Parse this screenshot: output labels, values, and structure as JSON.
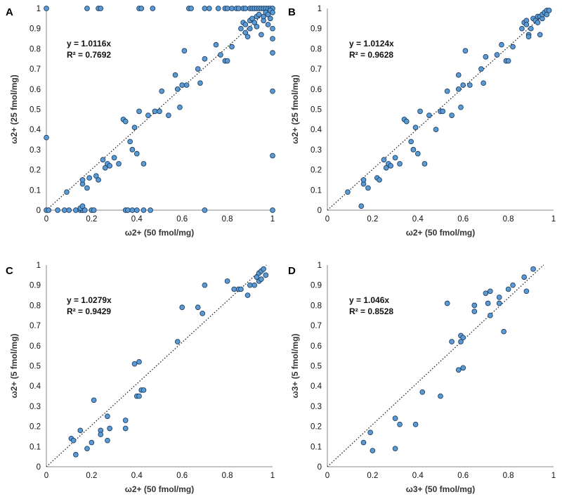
{
  "colors": {
    "point_fill": "#5b9bd5",
    "point_stroke": "#1f3f62",
    "trendline": "#222222",
    "axis": "#888888"
  },
  "chart_data": [
    {
      "panel": "A",
      "type": "scatter",
      "xlabel": "ω2+ (50 fmol/mg)",
      "ylabel": "ω2+ (25 fmol/mg)",
      "xlim": [
        0,
        1
      ],
      "ylim": [
        0,
        1
      ],
      "xticks": [
        "0",
        "0.2",
        "0.4",
        "0.6",
        "0.8",
        "1"
      ],
      "yticks": [
        "0",
        "0.1",
        "0.2",
        "0.3",
        "0.4",
        "0.5",
        "0.6",
        "0.7",
        "0.8",
        "0.9",
        "1"
      ],
      "equation": "y = 1.0116x",
      "r2": "R² = 0.7692",
      "slope": 1.0116,
      "points": [
        [
          0,
          1
        ],
        [
          0.18,
          1
        ],
        [
          0.23,
          1
        ],
        [
          0.24,
          1
        ],
        [
          0.41,
          1
        ],
        [
          0.42,
          1
        ],
        [
          0.47,
          1
        ],
        [
          0.63,
          1
        ],
        [
          0.64,
          1
        ],
        [
          0.7,
          1
        ],
        [
          0.72,
          1
        ],
        [
          0.76,
          1
        ],
        [
          0.79,
          1
        ],
        [
          0.8,
          1
        ],
        [
          0.82,
          1
        ],
        [
          0.84,
          1
        ],
        [
          0.85,
          1
        ],
        [
          0.87,
          1
        ],
        [
          0.88,
          1
        ],
        [
          0.9,
          1
        ],
        [
          0.91,
          1
        ],
        [
          0.92,
          1
        ],
        [
          0.93,
          1
        ],
        [
          0.94,
          1
        ],
        [
          0.95,
          1
        ],
        [
          0.96,
          1
        ],
        [
          0.97,
          1
        ],
        [
          0.98,
          1
        ],
        [
          0.99,
          1
        ],
        [
          1,
          1
        ],
        [
          0,
          0.36
        ],
        [
          0,
          0
        ],
        [
          0.01,
          0
        ],
        [
          0.05,
          0
        ],
        [
          0.08,
          0
        ],
        [
          0.1,
          0
        ],
        [
          0.13,
          0
        ],
        [
          0.15,
          0
        ],
        [
          0.16,
          0
        ],
        [
          0.17,
          0
        ],
        [
          0.2,
          0
        ],
        [
          0.21,
          0
        ],
        [
          0.35,
          0
        ],
        [
          0.36,
          0
        ],
        [
          0.38,
          0
        ],
        [
          0.4,
          0
        ],
        [
          0.43,
          0
        ],
        [
          0.46,
          0
        ],
        [
          0.7,
          0
        ],
        [
          1,
          0
        ],
        [
          0.15,
          0.01
        ],
        [
          0.16,
          0.02
        ],
        [
          1,
          0.27
        ],
        [
          1,
          0.59
        ],
        [
          1,
          0.78
        ],
        [
          1,
          0.85
        ],
        [
          1,
          0.9
        ],
        [
          0.09,
          0.09
        ],
        [
          0.16,
          0.13
        ],
        [
          0.16,
          0.15
        ],
        [
          0.18,
          0.11
        ],
        [
          0.19,
          0.16
        ],
        [
          0.22,
          0.17
        ],
        [
          0.23,
          0.15
        ],
        [
          0.25,
          0.25
        ],
        [
          0.26,
          0.21
        ],
        [
          0.27,
          0.23
        ],
        [
          0.28,
          0.22
        ],
        [
          0.3,
          0.26
        ],
        [
          0.32,
          0.23
        ],
        [
          0.34,
          0.45
        ],
        [
          0.35,
          0.44
        ],
        [
          0.37,
          0.34
        ],
        [
          0.38,
          0.3
        ],
        [
          0.39,
          0.41
        ],
        [
          0.4,
          0.28
        ],
        [
          0.41,
          0.49
        ],
        [
          0.43,
          0.23
        ],
        [
          0.45,
          0.47
        ],
        [
          0.48,
          0.49
        ],
        [
          0.5,
          0.49
        ],
        [
          0.51,
          0.59
        ],
        [
          0.54,
          0.47
        ],
        [
          0.57,
          0.67
        ],
        [
          0.58,
          0.6
        ],
        [
          0.59,
          0.51
        ],
        [
          0.6,
          0.62
        ],
        [
          0.61,
          0.79
        ],
        [
          0.62,
          0.62
        ],
        [
          0.67,
          0.7
        ],
        [
          0.68,
          0.63
        ],
        [
          0.7,
          0.75
        ],
        [
          0.75,
          0.82
        ],
        [
          0.77,
          0.77
        ],
        [
          0.79,
          0.74
        ],
        [
          0.8,
          0.74
        ],
        [
          0.82,
          0.81
        ],
        [
          0.86,
          0.9
        ],
        [
          0.87,
          0.93
        ],
        [
          0.88,
          0.92
        ],
        [
          0.88,
          0.88
        ],
        [
          0.89,
          0.86
        ],
        [
          0.9,
          0.9
        ],
        [
          0.9,
          0.94
        ],
        [
          0.91,
          0.95
        ],
        [
          0.92,
          0.93
        ],
        [
          0.93,
          0.96
        ],
        [
          0.93,
          0.91
        ],
        [
          0.94,
          0.97
        ],
        [
          0.95,
          0.87
        ],
        [
          0.96,
          0.94
        ],
        [
          0.96,
          0.96
        ],
        [
          0.97,
          0.98
        ],
        [
          0.98,
          0.92
        ],
        [
          0.98,
          0.97
        ],
        [
          0.99,
          0.99
        ],
        [
          0.99,
          0.95
        ],
        [
          1,
          0.98
        ]
      ]
    },
    {
      "panel": "B",
      "type": "scatter",
      "xlabel": "ω2+ (50 fmol/mg)",
      "ylabel": "ω2+ (25 fmol/mg)",
      "xlim": [
        0,
        1
      ],
      "ylim": [
        0,
        1
      ],
      "xticks": [
        "0",
        "0.2",
        "0.4",
        "0.6",
        "0.8",
        "1"
      ],
      "yticks": [
        "0",
        "0.1",
        "0.2",
        "0.3",
        "0.4",
        "0.5",
        "0.6",
        "0.7",
        "0.8",
        "0.9",
        "1"
      ],
      "equation": "y = 1.0124x",
      "r2": "R² = 0.9628",
      "slope": 1.0124,
      "points": [
        [
          0.09,
          0.09
        ],
        [
          0.15,
          0.02
        ],
        [
          0.16,
          0.13
        ],
        [
          0.16,
          0.15
        ],
        [
          0.18,
          0.11
        ],
        [
          0.22,
          0.16
        ],
        [
          0.23,
          0.15
        ],
        [
          0.25,
          0.25
        ],
        [
          0.26,
          0.21
        ],
        [
          0.27,
          0.23
        ],
        [
          0.28,
          0.22
        ],
        [
          0.3,
          0.26
        ],
        [
          0.32,
          0.23
        ],
        [
          0.34,
          0.45
        ],
        [
          0.35,
          0.44
        ],
        [
          0.37,
          0.34
        ],
        [
          0.38,
          0.3
        ],
        [
          0.39,
          0.41
        ],
        [
          0.4,
          0.28
        ],
        [
          0.41,
          0.49
        ],
        [
          0.43,
          0.23
        ],
        [
          0.45,
          0.47
        ],
        [
          0.48,
          0.4
        ],
        [
          0.5,
          0.49
        ],
        [
          0.51,
          0.49
        ],
        [
          0.53,
          0.59
        ],
        [
          0.55,
          0.47
        ],
        [
          0.58,
          0.67
        ],
        [
          0.58,
          0.6
        ],
        [
          0.59,
          0.51
        ],
        [
          0.6,
          0.62
        ],
        [
          0.61,
          0.79
        ],
        [
          0.63,
          0.62
        ],
        [
          0.68,
          0.7
        ],
        [
          0.69,
          0.63
        ],
        [
          0.7,
          0.76
        ],
        [
          0.75,
          0.77
        ],
        [
          0.77,
          0.82
        ],
        [
          0.79,
          0.74
        ],
        [
          0.8,
          0.74
        ],
        [
          0.82,
          0.81
        ],
        [
          0.86,
          0.9
        ],
        [
          0.87,
          0.93
        ],
        [
          0.88,
          0.94
        ],
        [
          0.88,
          0.92
        ],
        [
          0.89,
          0.87
        ],
        [
          0.89,
          0.86
        ],
        [
          0.9,
          0.9
        ],
        [
          0.91,
          0.95
        ],
        [
          0.92,
          0.94
        ],
        [
          0.93,
          0.93
        ],
        [
          0.93,
          0.96
        ],
        [
          0.94,
          0.96
        ],
        [
          0.94,
          0.87
        ],
        [
          0.95,
          0.95
        ],
        [
          0.95,
          0.97
        ],
        [
          0.96,
          0.98
        ],
        [
          0.97,
          0.99
        ],
        [
          0.97,
          0.97
        ],
        [
          0.98,
          0.99
        ]
      ]
    },
    {
      "panel": "C",
      "type": "scatter",
      "xlabel": "ω2+ (50 fmol/mg)",
      "ylabel": "ω2+ (5 fmol/mg)",
      "xlim": [
        0,
        1
      ],
      "ylim": [
        0,
        1
      ],
      "xticks": [
        "0",
        "0.2",
        "0.4",
        "0.6",
        "0.8",
        "1"
      ],
      "yticks": [
        "0",
        "0.1",
        "0.2",
        "0.3",
        "0.4",
        "0.5",
        "0.6",
        "0.7",
        "0.8",
        "0.9",
        "1"
      ],
      "equation": "y = 1.0279x",
      "r2": "R² = 0.9429",
      "slope": 1.0279,
      "points": [
        [
          0.11,
          0.14
        ],
        [
          0.12,
          0.13
        ],
        [
          0.13,
          0.06
        ],
        [
          0.15,
          0.18
        ],
        [
          0.18,
          0.09
        ],
        [
          0.2,
          0.12
        ],
        [
          0.21,
          0.33
        ],
        [
          0.24,
          0.18
        ],
        [
          0.24,
          0.16
        ],
        [
          0.27,
          0.13
        ],
        [
          0.27,
          0.25
        ],
        [
          0.28,
          0.19
        ],
        [
          0.35,
          0.23
        ],
        [
          0.35,
          0.19
        ],
        [
          0.39,
          0.51
        ],
        [
          0.4,
          0.35
        ],
        [
          0.41,
          0.35
        ],
        [
          0.41,
          0.52
        ],
        [
          0.42,
          0.38
        ],
        [
          0.43,
          0.38
        ],
        [
          0.58,
          0.62
        ],
        [
          0.6,
          0.79
        ],
        [
          0.67,
          0.79
        ],
        [
          0.69,
          0.76
        ],
        [
          0.7,
          0.9
        ],
        [
          0.8,
          0.92
        ],
        [
          0.83,
          0.88
        ],
        [
          0.85,
          0.88
        ],
        [
          0.86,
          0.88
        ],
        [
          0.89,
          0.85
        ],
        [
          0.9,
          0.9
        ],
        [
          0.92,
          0.9
        ],
        [
          0.93,
          0.94
        ],
        [
          0.94,
          0.92
        ],
        [
          0.94,
          0.96
        ],
        [
          0.95,
          0.97
        ],
        [
          0.95,
          0.93
        ],
        [
          0.96,
          0.98
        ],
        [
          0.97,
          0.95
        ]
      ]
    },
    {
      "panel": "D",
      "type": "scatter",
      "xlabel": "ω3+ (50 fmol/mg)",
      "ylabel": "ω3+ (5 fmol/mg)",
      "xlim": [
        0,
        1
      ],
      "ylim": [
        0,
        1
      ],
      "xticks": [
        "0",
        "0.2",
        "0.4",
        "0.6",
        "0.8",
        "1"
      ],
      "yticks": [
        "0",
        "0.1",
        "0.2",
        "0.3",
        "0.4",
        "0.5",
        "0.6",
        "0.7",
        "0.8",
        "0.9",
        "1"
      ],
      "equation": "y = 1.046x",
      "r2": "R² = 0.8528",
      "slope": 1.046,
      "points": [
        [
          0.16,
          0.12
        ],
        [
          0.19,
          0.17
        ],
        [
          0.2,
          0.08
        ],
        [
          0.3,
          0.09
        ],
        [
          0.3,
          0.24
        ],
        [
          0.32,
          0.21
        ],
        [
          0.39,
          0.21
        ],
        [
          0.42,
          0.37
        ],
        [
          0.5,
          0.35
        ],
        [
          0.53,
          0.81
        ],
        [
          0.55,
          0.62
        ],
        [
          0.58,
          0.48
        ],
        [
          0.59,
          0.62
        ],
        [
          0.59,
          0.65
        ],
        [
          0.6,
          0.64
        ],
        [
          0.6,
          0.49
        ],
        [
          0.65,
          0.8
        ],
        [
          0.65,
          0.77
        ],
        [
          0.7,
          0.86
        ],
        [
          0.71,
          0.81
        ],
        [
          0.72,
          0.87
        ],
        [
          0.72,
          0.75
        ],
        [
          0.76,
          0.84
        ],
        [
          0.76,
          0.81
        ],
        [
          0.78,
          0.67
        ],
        [
          0.8,
          0.88
        ],
        [
          0.82,
          0.9
        ],
        [
          0.87,
          0.94
        ],
        [
          0.88,
          0.87
        ],
        [
          0.91,
          0.98
        ]
      ]
    }
  ]
}
